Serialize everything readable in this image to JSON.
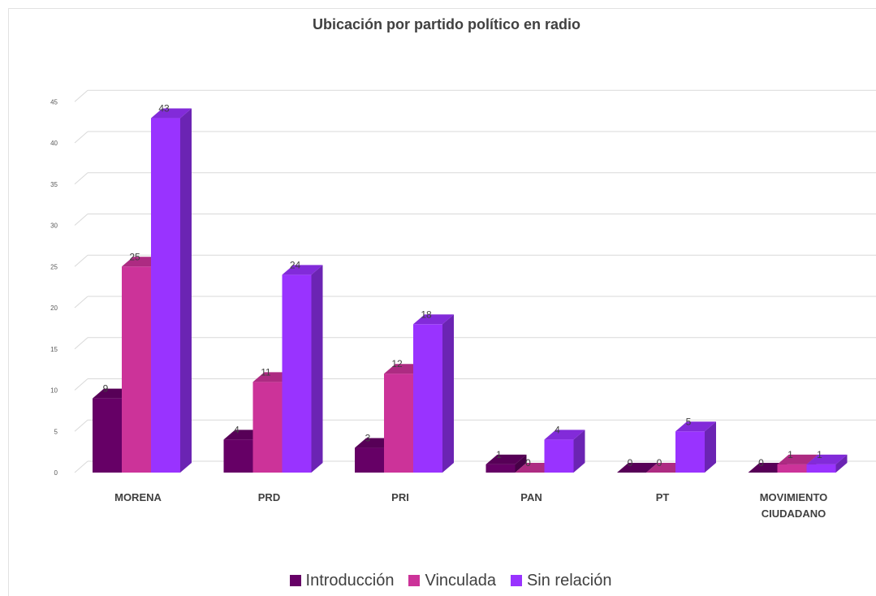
{
  "chart_data": {
    "type": "bar",
    "title": "Ubicación por partido político en radio",
    "categories": [
      [
        "MORENA"
      ],
      [
        "PRD"
      ],
      [
        "PRI"
      ],
      [
        "PAN"
      ],
      [
        "PT"
      ],
      [
        "MOVIMIENTO",
        "CIUDADANO"
      ]
    ],
    "series": [
      {
        "name": "Introducción",
        "color": "#660066",
        "values": [
          9,
          4,
          3,
          1,
          0,
          0
        ]
      },
      {
        "name": "Vinculada",
        "color": "#cc3399",
        "values": [
          25,
          11,
          12,
          0,
          0,
          1
        ]
      },
      {
        "name": "Sin relación",
        "color": "#9933ff",
        "values": [
          43,
          24,
          18,
          4,
          5,
          1
        ]
      }
    ],
    "yticks": [
      0,
      5,
      10,
      15,
      20,
      25,
      30,
      35,
      40,
      45
    ],
    "ylim": [
      0,
      45
    ],
    "grid": true,
    "legend": "bottom",
    "style": "3d-column"
  }
}
